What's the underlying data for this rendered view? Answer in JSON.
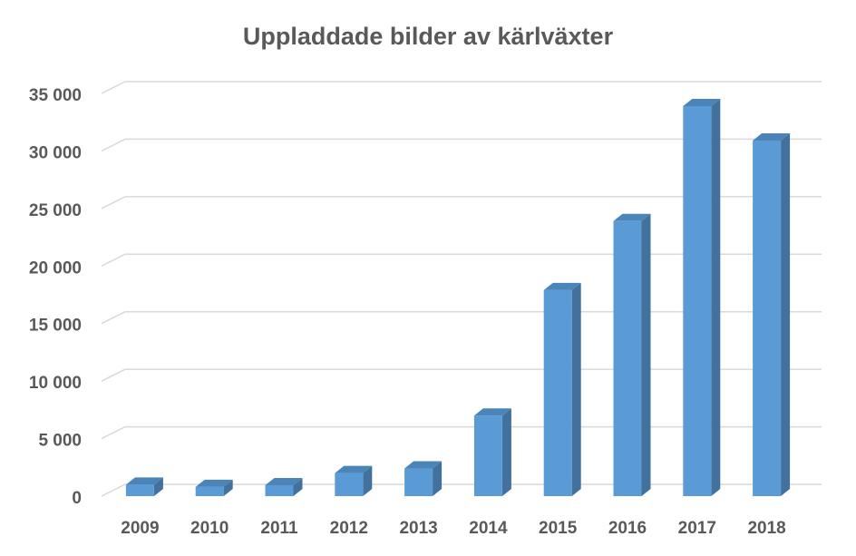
{
  "chart_data": {
    "type": "bar",
    "title": "Uppladdade bilder av kärlväxter",
    "xlabel": "",
    "ylabel": "",
    "categories": [
      "2009",
      "2010",
      "2011",
      "2012",
      "2013",
      "2014",
      "2015",
      "2016",
      "2017",
      "2018"
    ],
    "values": [
      1000,
      800,
      950,
      2000,
      2400,
      7000,
      17900,
      23900,
      33900,
      30900
    ],
    "ylim": [
      0,
      35000
    ],
    "yticks": [
      0,
      5000,
      10000,
      15000,
      20000,
      25000,
      30000,
      35000
    ],
    "ytick_labels": [
      "0",
      "5 000",
      "10 000",
      "15 000",
      "20 000",
      "25 000",
      "30 000",
      "35 000"
    ],
    "grid": true,
    "legend": "none",
    "style": "3d-column",
    "colors": {
      "bar_front": "#5b9bd5",
      "bar_side": "#41719c",
      "bar_top": "#4a84b8",
      "gridline": "#d9d9d9",
      "text": "#595959"
    }
  }
}
